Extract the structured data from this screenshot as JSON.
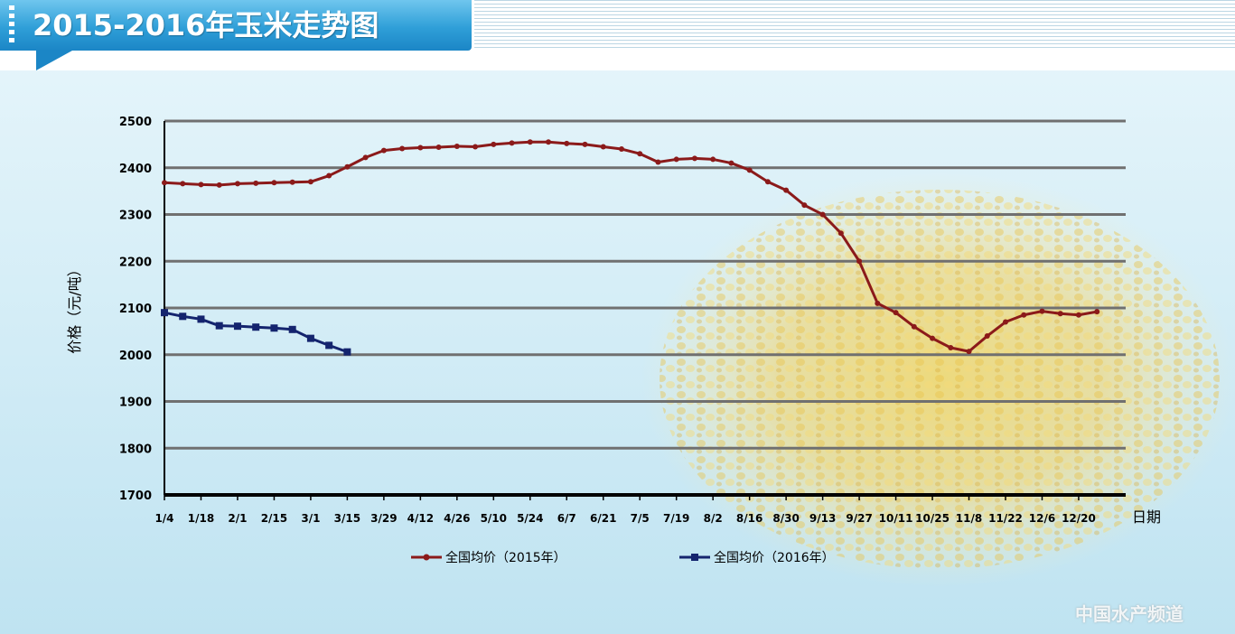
{
  "header": {
    "title": "2015-2016年玉米走势图"
  },
  "watermark": "中国水产频道",
  "colors": {
    "series_2015": "#8b1a1a",
    "series_2016": "#14246e",
    "grid": "#707070",
    "axis": "#000000"
  },
  "chart_data": {
    "type": "line",
    "title": "2015-2016年玉米走势图",
    "xlabel": "日期",
    "ylabel": "价格（元/吨）",
    "ylim": [
      1700,
      2500
    ],
    "yticks": [
      1700,
      1800,
      1900,
      2000,
      2100,
      2200,
      2300,
      2400,
      2500
    ],
    "x_tick_labels": [
      "1/4",
      "1/18",
      "2/1",
      "2/15",
      "3/1",
      "3/15",
      "3/29",
      "4/12",
      "4/26",
      "5/10",
      "5/24",
      "6/7",
      "6/21",
      "7/5",
      "7/19",
      "8/2",
      "8/16",
      "8/30",
      "9/13",
      "9/27",
      "10/11",
      "10/25",
      "11/8",
      "11/22",
      "12/6",
      "12/20"
    ],
    "grid": true,
    "legend_position": "bottom",
    "series": [
      {
        "name": "全国均价（2015年）",
        "x": [
          "1/4",
          "1/11",
          "1/18",
          "1/25",
          "2/1",
          "2/8",
          "2/15",
          "2/22",
          "3/1",
          "3/8",
          "3/15",
          "3/22",
          "3/29",
          "4/5",
          "4/12",
          "4/19",
          "4/26",
          "5/3",
          "5/10",
          "5/17",
          "5/24",
          "5/31",
          "6/7",
          "6/14",
          "6/21",
          "6/28",
          "7/5",
          "7/12",
          "7/19",
          "7/26",
          "8/2",
          "8/9",
          "8/16",
          "8/23",
          "8/30",
          "9/6",
          "9/13",
          "9/20",
          "9/27",
          "10/4",
          "10/11",
          "10/18",
          "10/25",
          "11/1",
          "11/8",
          "11/15",
          "11/22",
          "11/29",
          "12/6",
          "12/13",
          "12/20",
          "12/27"
        ],
        "values": [
          2368,
          2366,
          2364,
          2363,
          2366,
          2367,
          2368,
          2369,
          2370,
          2383,
          2402,
          2422,
          2437,
          2441,
          2443,
          2444,
          2446,
          2445,
          2450,
          2453,
          2455,
          2455,
          2452,
          2450,
          2445,
          2440,
          2430,
          2412,
          2418,
          2420,
          2418,
          2410,
          2395,
          2370,
          2352,
          2320,
          2300,
          2260,
          2200,
          2110,
          2090,
          2060,
          2035,
          2015,
          2007,
          2040,
          2070,
          2085,
          2093,
          2088,
          2085,
          2092
        ]
      },
      {
        "name": "全国均价（2016年）",
        "x": [
          "1/4",
          "1/11",
          "1/18",
          "1/25",
          "2/1",
          "2/8",
          "2/15",
          "2/22",
          "3/1",
          "3/8",
          "3/15"
        ],
        "values": [
          2090,
          2082,
          2076,
          2062,
          2061,
          2059,
          2057,
          2054,
          2035,
          2020,
          2006
        ]
      }
    ]
  }
}
